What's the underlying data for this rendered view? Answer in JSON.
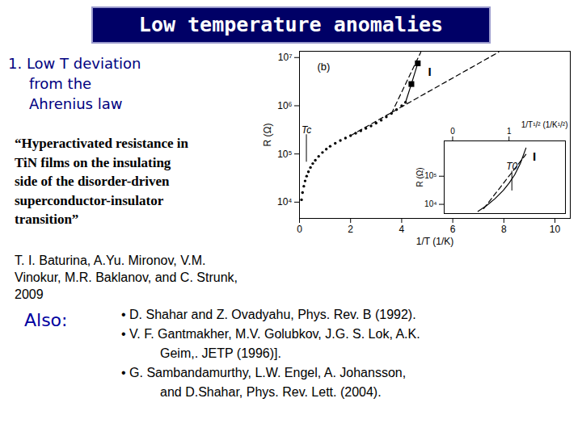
{
  "title": "Low temperature anomalies",
  "heading": [
    "1. Low T deviation",
    "from the",
    "Ahrenius law"
  ],
  "quote": [
    "“Hyperactivated resistance in",
    "TiN films on the insulating",
    "side of the disorder-driven",
    "superconductor-insulator",
    "transition”"
  ],
  "authors": [
    "T. I. Baturina, A.Yu. Mironov, V.M.",
    "Vinokur, M.R. Baklanov, and C. Strunk,",
    "2009"
  ],
  "also_label": "Also:",
  "references": [
    [
      "• D. Shahar and Z. Ovadyahu, Phys. Rev. B (1992)."
    ],
    [
      "• V. F. Gantmakher, M.V. Golubkov, J.G. S. Lok, A.K.",
      "Geim,. JETP (1996)]."
    ],
    [
      "• G. Sambandamurthy, L.W. Engel, A. Johansson,",
      "and D.Shahar, Phys. Rev. Lett. (2004)."
    ]
  ],
  "chart_data": [
    {
      "type": "line",
      "panel_label": "(b)",
      "xlabel": "1/T (1/K)",
      "ylabel": "R (Ω)",
      "log": "y",
      "xlim": [
        0,
        10.6
      ],
      "ylim": [
        4600,
        13500000
      ],
      "xticks": [
        0,
        2,
        4,
        6,
        8,
        10
      ],
      "yticks": [
        {
          "value": 10000,
          "label": "10⁴"
        },
        {
          "value": 100000,
          "label": "10⁵"
        },
        {
          "value": 1000000,
          "label": "10⁶"
        },
        {
          "value": 10000000,
          "label": "10⁷"
        }
      ],
      "series": [
        {
          "color": "#000000",
          "marker": "circle",
          "line_style": "none",
          "x": [
            0.08,
            0.12,
            0.17,
            0.22,
            0.28,
            0.35,
            0.43,
            0.52,
            0.62,
            0.75,
            0.9,
            1.05,
            1.2,
            1.4,
            1.6,
            1.8,
            2.0,
            2.2,
            2.4,
            2.6,
            2.8,
            3.0,
            3.2,
            3.4,
            3.6,
            3.8,
            4.0,
            4.15
          ],
          "values": [
            11220,
            15850,
            21380,
            27540,
            34670,
            42660,
            52480,
            63100,
            74130,
            89130,
            107200,
            125900,
            144500,
            166000,
            190500,
            213800,
            239900,
            269200,
            302000,
            338800,
            380200,
            436500,
            501200,
            588800,
            691800,
            831800,
            1000000,
            1175000
          ]
        },
        {
          "color": "#000000",
          "marker": "none",
          "line_style": "solid",
          "x": [
            4.15,
            4.38,
            4.63
          ],
          "values": [
            1175000,
            2820000,
            7590000
          ]
        },
        {
          "color": "#000000",
          "marker": "square",
          "line_style": "none",
          "x": [
            4.38,
            4.63
          ],
          "values": [
            2820000,
            7590000
          ]
        },
        {
          "color": "#000000",
          "marker": "none",
          "line_style": "dashed",
          "x": [
            2.0,
            7.8
          ],
          "values": [
            240000,
            13000000
          ]
        },
        {
          "color": "#000000",
          "marker": "none",
          "line_style": "dashed",
          "x": [
            3.6,
            4.75
          ],
          "values": [
            690000,
            13000000
          ]
        }
      ],
      "annotations": [
        {
          "text": "Tc",
          "x": 0.27,
          "y": 251000,
          "y_from": 67600
        },
        {
          "text": "I",
          "x": 5.1,
          "y": 5000000
        }
      ]
    },
    {
      "type": "line",
      "xlabel": "1/T¹/² (1/K¹/²)",
      "ylabel": "R (Ω)",
      "log": "y",
      "xlim": [
        -0.15,
        2.0
      ],
      "ylim": [
        4700,
        1800000
      ],
      "xticks": [
        0,
        1
      ],
      "yticks": [
        {
          "value": 10000,
          "label": "10⁴"
        },
        {
          "value": 100000,
          "label": "10⁵"
        }
      ],
      "series": [
        {
          "color": "#000000",
          "marker": "none",
          "line_style": "solid",
          "x": [
            0.45,
            0.6,
            0.75,
            0.9,
            1.0,
            1.1,
            1.2,
            1.3
          ],
          "values": [
            5620,
            8910,
            15850,
            31620,
            56230,
            112200,
            281800,
            1000000
          ]
        },
        {
          "color": "#000000",
          "marker": "none",
          "line_style": "dashed",
          "x": [
            0.55,
            1.3
          ],
          "values": [
            7000,
            600000
          ]
        }
      ],
      "annotations": [
        {
          "text": "T0",
          "x": 1.05,
          "y": 150000,
          "y_from": 30000
        },
        {
          "text": "I",
          "x": 1.45,
          "y": 500000
        }
      ]
    }
  ]
}
